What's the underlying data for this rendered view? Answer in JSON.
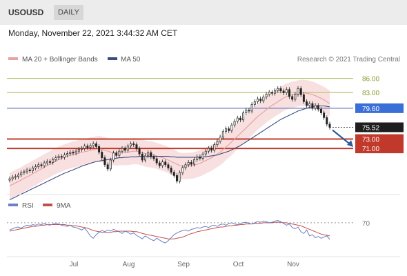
{
  "header": {
    "symbol": "USOUSD",
    "timeframe": "DAILY"
  },
  "datetime": "Monday, November 22, 2021 3:44:32 AM CET",
  "legend": {
    "ma20": "MA 20 + Bollinger Bands",
    "ma50": "MA 50",
    "copyright": "Research © 2021 Trading Central",
    "rsi": "RSI",
    "ma9": "9MA"
  },
  "colors": {
    "ma20": "#e6a3a3",
    "ma50": "#3d4e7e",
    "band": "#f7d6d6",
    "resistance": "#b8c26a",
    "support": "#c0392b",
    "pivot_line": "#6c7fbf",
    "pivot_tag": "#3a6fd8",
    "current_tag": "#1e1e1e",
    "arrow": "#2d5d9a",
    "rsi": "#6b7fc4",
    "rsi_ma": "#c0504d",
    "candle": "#222222"
  },
  "chart_data": [
    {
      "type": "candlestick",
      "title": "USOUSD",
      "timeframe": "DAILY",
      "x_labels": [
        "Jul",
        "Aug",
        "Sep",
        "Oct",
        "Nov"
      ],
      "ylim": [
        62,
        88
      ],
      "levels": [
        {
          "label": "86.00",
          "value": 86.0,
          "kind": "resistance"
        },
        {
          "label": "83.00",
          "value": 83.0,
          "kind": "resistance"
        },
        {
          "label": "79.60",
          "value": 79.6,
          "kind": "pivot"
        },
        {
          "label": "73.00",
          "value": 73.0,
          "kind": "support"
        },
        {
          "label": "71.00",
          "value": 71.0,
          "kind": "support"
        }
      ],
      "current_price": {
        "label": "75.52",
        "value": 75.52
      },
      "close_series": [
        64.5,
        64.8,
        65.0,
        65.3,
        65.8,
        66.0,
        66.4,
        66.2,
        66.8,
        67.1,
        67.5,
        67.3,
        67.9,
        68.2,
        68.0,
        68.6,
        69.0,
        69.3,
        69.1,
        69.6,
        69.9,
        70.2,
        70.0,
        70.4,
        70.8,
        71.0,
        71.5,
        71.2,
        71.6,
        72.0,
        71.4,
        70.2,
        69.0,
        67.5,
        66.6,
        68.5,
        70.0,
        69.5,
        70.4,
        71.0,
        70.6,
        71.5,
        72.0,
        71.8,
        70.9,
        69.8,
        68.5,
        69.4,
        70.1,
        69.2,
        68.8,
        67.9,
        67.3,
        68.1,
        67.5,
        66.8,
        65.9,
        65.2,
        64.0,
        65.8,
        66.9,
        67.5,
        68.0,
        67.6,
        68.6,
        69.2,
        68.9,
        69.8,
        70.4,
        71.0,
        70.6,
        71.8,
        72.5,
        73.4,
        74.6,
        75.2,
        74.8,
        76.0,
        76.8,
        77.5,
        77.1,
        78.6,
        79.2,
        79.0,
        80.4,
        81.0,
        81.6,
        81.2,
        82.0,
        82.6,
        83.0,
        82.8,
        83.4,
        83.8,
        83.3,
        82.9,
        83.6,
        82.1,
        81.5,
        82.6,
        83.8,
        82.5,
        81.0,
        80.2,
        80.6,
        79.6,
        80.2,
        79.4,
        78.6,
        77.6,
        76.2,
        75.52
      ],
      "ma20": [
        63.0,
        63.3,
        63.6,
        63.9,
        64.2,
        64.6,
        64.9,
        65.2,
        65.6,
        65.9,
        66.3,
        66.6,
        67.0,
        67.3,
        67.6,
        68.0,
        68.3,
        68.6,
        68.8,
        69.1,
        69.3,
        69.5,
        69.7,
        69.8,
        70.0,
        70.1,
        70.3,
        70.4,
        70.6,
        70.7,
        70.8,
        70.9,
        70.8,
        70.6,
        70.4,
        70.2,
        70.2,
        70.1,
        70.2,
        70.2,
        70.2,
        70.2,
        70.3,
        70.4,
        70.4,
        70.3,
        70.1,
        69.9,
        69.8,
        69.7,
        69.6,
        69.4,
        69.2,
        69.0,
        68.8,
        68.5,
        68.2,
        67.9,
        67.6,
        67.3,
        67.2,
        67.2,
        67.3,
        67.3,
        67.4,
        67.6,
        67.8,
        68.1,
        68.4,
        68.7,
        69.0,
        69.4,
        69.8,
        70.2,
        70.7,
        71.3,
        71.8,
        72.4,
        73.0,
        73.6,
        74.2,
        74.8,
        75.4,
        76.0,
        76.6,
        77.2,
        77.8,
        78.3,
        78.8,
        79.3,
        79.8,
        80.2,
        80.6,
        81.0,
        81.4,
        81.8,
        82.1,
        82.3,
        82.5,
        82.6,
        82.8,
        82.9,
        82.9,
        82.8,
        82.7,
        82.5,
        82.3,
        82.0,
        81.7,
        81.4,
        81.0,
        80.6
      ],
      "ma50": [
        60.0,
        60.3,
        60.6,
        60.9,
        61.2,
        61.5,
        61.8,
        62.1,
        62.4,
        62.7,
        63.0,
        63.3,
        63.6,
        63.9,
        64.2,
        64.5,
        64.8,
        65.1,
        65.4,
        65.7,
        65.9,
        66.2,
        66.4,
        66.7,
        66.9,
        67.2,
        67.4,
        67.6,
        67.8,
        68.0,
        68.2,
        68.3,
        68.4,
        68.5,
        68.6,
        68.7,
        68.8,
        68.9,
        69.0,
        69.0,
        69.1,
        69.1,
        69.2,
        69.2,
        69.2,
        69.3,
        69.3,
        69.3,
        69.3,
        69.3,
        69.3,
        69.3,
        69.3,
        69.3,
        69.3,
        69.3,
        69.2,
        69.2,
        69.1,
        69.1,
        69.1,
        69.1,
        69.1,
        69.1,
        69.1,
        69.1,
        69.1,
        69.2,
        69.2,
        69.3,
        69.4,
        69.5,
        69.6,
        69.8,
        70.0,
        70.2,
        70.4,
        70.7,
        71.0,
        71.3,
        71.6,
        72.0,
        72.4,
        72.8,
        73.2,
        73.6,
        74.0,
        74.4,
        74.8,
        75.2,
        75.6,
        76.0,
        76.4,
        76.8,
        77.2,
        77.5,
        77.8,
        78.1,
        78.4,
        78.7,
        79.0,
        79.2,
        79.4,
        79.6,
        79.8,
        79.9,
        80.0,
        80.1,
        80.1,
        80.1,
        80.0,
        79.9
      ],
      "bb_width": 2.8
    },
    {
      "type": "line",
      "title": "RSI",
      "series": [
        {
          "name": "RSI",
          "values": [
            58,
            60,
            62,
            63,
            61,
            64,
            66,
            65,
            67,
            66,
            68,
            67,
            69,
            67,
            66,
            68,
            69,
            68,
            66,
            65,
            64,
            66,
            63,
            62,
            60,
            58,
            61,
            55,
            48,
            44,
            50,
            54,
            57,
            55,
            58,
            56,
            59,
            57,
            55,
            52,
            56,
            54,
            51,
            53,
            49,
            46,
            43,
            48,
            45,
            42,
            40,
            44,
            41,
            38,
            36,
            40,
            45,
            50,
            53,
            55,
            57,
            58,
            56,
            59,
            60,
            62,
            61,
            63,
            64,
            62,
            65,
            66,
            64,
            67,
            68,
            66,
            69,
            70,
            68,
            67,
            69,
            70,
            71,
            69,
            68,
            70,
            72,
            71,
            73,
            72,
            70,
            71,
            73,
            74,
            72,
            69,
            66,
            68,
            62,
            60,
            63,
            55,
            52,
            58,
            48,
            50,
            45,
            47,
            44,
            46,
            48,
            42
          ]
        },
        {
          "name": "9MA",
          "values": [
            56,
            57,
            58,
            59,
            60,
            61,
            62,
            63,
            64,
            64,
            65,
            66,
            66,
            67,
            67,
            67,
            67,
            67,
            67,
            67,
            66,
            66,
            65,
            65,
            64,
            63,
            62,
            61,
            59,
            57,
            56,
            55,
            54,
            54,
            54,
            54,
            55,
            55,
            56,
            56,
            56,
            56,
            56,
            55,
            55,
            54,
            52,
            51,
            50,
            49,
            48,
            47,
            46,
            45,
            44,
            43,
            43,
            43,
            44,
            45,
            46,
            48,
            50,
            52,
            53,
            55,
            56,
            57,
            58,
            59,
            60,
            61,
            62,
            63,
            63,
            64,
            65,
            65,
            66,
            66,
            67,
            67,
            68,
            68,
            68,
            69,
            69,
            69,
            70,
            70,
            70,
            70,
            71,
            71,
            71,
            70,
            70,
            69,
            68,
            67,
            66,
            65,
            63,
            61,
            59,
            57,
            55,
            53,
            51,
            50,
            49,
            48
          ]
        }
      ],
      "ylim": [
        20,
        85
      ],
      "levels": [
        {
          "label": "70",
          "value": 70
        }
      ]
    }
  ]
}
